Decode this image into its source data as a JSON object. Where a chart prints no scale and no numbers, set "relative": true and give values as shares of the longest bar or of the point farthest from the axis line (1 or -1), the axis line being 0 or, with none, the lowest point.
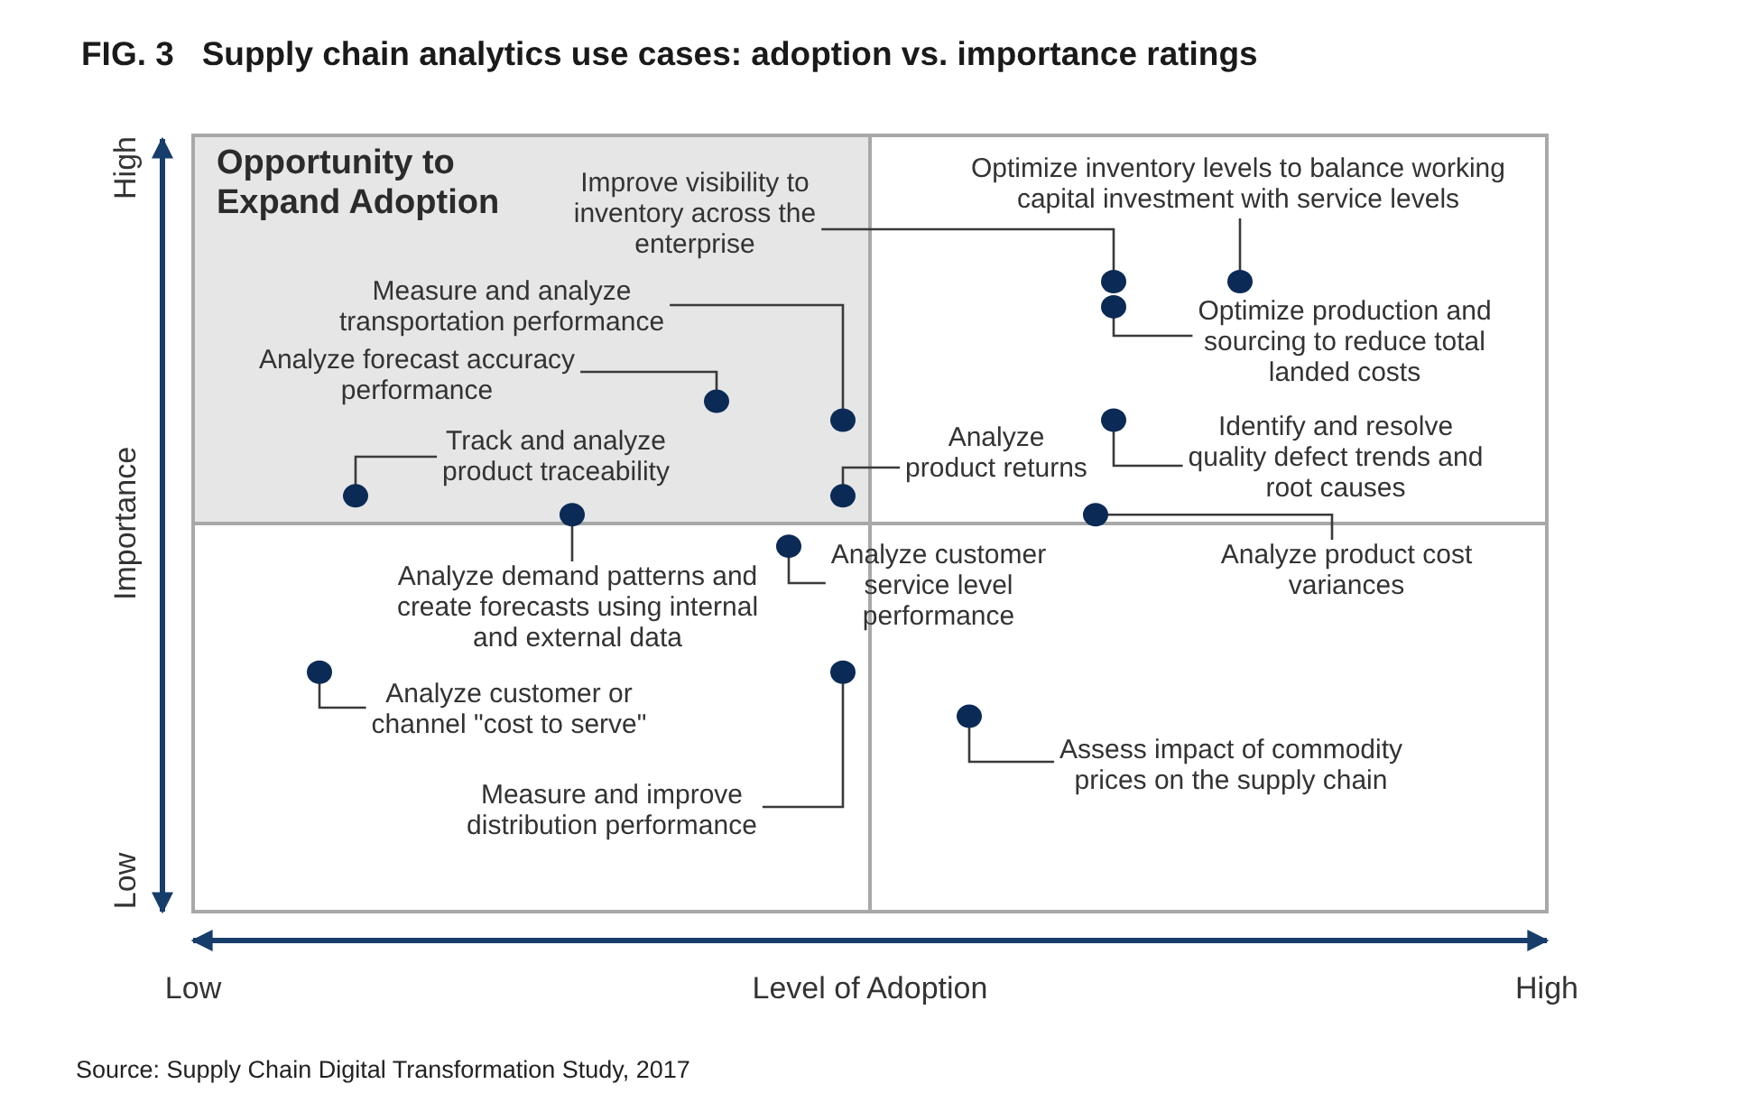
{
  "chart_data": {
    "type": "scatter",
    "relative": true,
    "title": "FIG. 3   Supply chain analytics use cases: adoption vs. importance ratings",
    "xlabel": "Level of Adoption",
    "ylabel": "Importance",
    "marker": "circle",
    "categories": [
      "Low",
      null,
      null,
      null,
      null,
      null,
      null,
      null,
      null,
      null,
      null,
      null,
      null,
      null,
      null,
      null,
      null,
      null,
      null,
      null,
      null,
      null,
      null,
      null,
      null,
      null,
      null,
      null,
      null,
      null,
      null,
      null,
      null,
      null,
      null,
      null,
      null,
      null,
      null,
      null,
      null,
      null,
      null,
      null,
      null,
      null,
      null,
      null,
      null,
      null,
      null,
      null,
      null,
      null,
      null,
      null,
      null,
      null,
      null,
      null,
      null,
      null,
      null,
      null,
      null,
      null,
      null,
      null,
      null,
      null,
      null,
      null,
      null,
      null,
      null,
      "High"
    ],
    "series": [
      {
        "color": "#0c2a56",
        "values": [
          null,
          null,
          null,
          null,
          null,
          null,
          null,
          0.38,
          null,
          0.66,
          null,
          null,
          null,
          null,
          null,
          null,
          null,
          null,
          null,
          null,
          null,
          0.63,
          null,
          null,
          null,
          null,
          null,
          null,
          null,
          0.81,
          null,
          null,
          null,
          0.58,
          null,
          null,
          0.78,
          null,
          null,
          null,
          null,
          null,
          null,
          0.31,
          null,
          null,
          null,
          null,
          null,
          null,
          0.63,
          1,
          null,
          null,
          null,
          null,
          null,
          null,
          1,
          null,
          null,
          null,
          null,
          null,
          null,
          null,
          null,
          null,
          null,
          null,
          null,
          null,
          null,
          null,
          null,
          null
        ]
      },
      {
        "color": "#0c2a56",
        "values": [
          null,
          null,
          null,
          null,
          null,
          null,
          null,
          null,
          null,
          null,
          null,
          null,
          null,
          null,
          null,
          null,
          null,
          null,
          null,
          null,
          null,
          null,
          null,
          null,
          null,
          null,
          null,
          null,
          null,
          null,
          null,
          null,
          null,
          null,
          null,
          null,
          0.66,
          null,
          null,
          null,
          null,
          null,
          null,
          null,
          null,
          null,
          null,
          null,
          null,
          null,
          null,
          0.96,
          null,
          null,
          null,
          null,
          null,
          null,
          null,
          null,
          null,
          null,
          null,
          null,
          null,
          null,
          null,
          null,
          null,
          null,
          null,
          null,
          null,
          null,
          null,
          null
        ]
      },
      {
        "color": "#0c2a56",
        "values": [
          null,
          null,
          null,
          null,
          null,
          null,
          null,
          null,
          null,
          null,
          null,
          null,
          null,
          null,
          null,
          null,
          null,
          null,
          null,
          null,
          null,
          null,
          null,
          null,
          null,
          null,
          null,
          null,
          null,
          null,
          null,
          null,
          null,
          null,
          null,
          null,
          0.38,
          null,
          null,
          null,
          null,
          null,
          null,
          null,
          null,
          null,
          null,
          null,
          null,
          null,
          null,
          0.78,
          null,
          null,
          null,
          null,
          null,
          null,
          null,
          null,
          null,
          null,
          null,
          null,
          null,
          null,
          null,
          null,
          null,
          null,
          null,
          null,
          null,
          null,
          null,
          null
        ]
      }
    ],
    "annotations": [
      "Analyze customer or channel \"cost to serve\"",
      "Track and analyze product traceability",
      "Analyze demand patterns and create forecasts using internal and external data",
      "Analyze forecast accuracy performance",
      "Analyze customer service level performance",
      "Measure and analyze transportation performance",
      "Assess impact of commodity prices on the supply chain",
      "Analyze product cost variances",
      "Improve visibility to inventory across the enterprise",
      "Optimize inventory levels to balance working capital investment with service levels",
      "Analyze product returns",
      "Optimize production and sourcing to reduce total landed costs",
      "Measure and improve distribution performance",
      "Identify and resolve quality defect trends and root causes",
      "Opportunity to Expand Adoption",
      "Low",
      "High",
      "Source: Supply Chain Digital Transformation Study, 2017"
    ]
  }
}
